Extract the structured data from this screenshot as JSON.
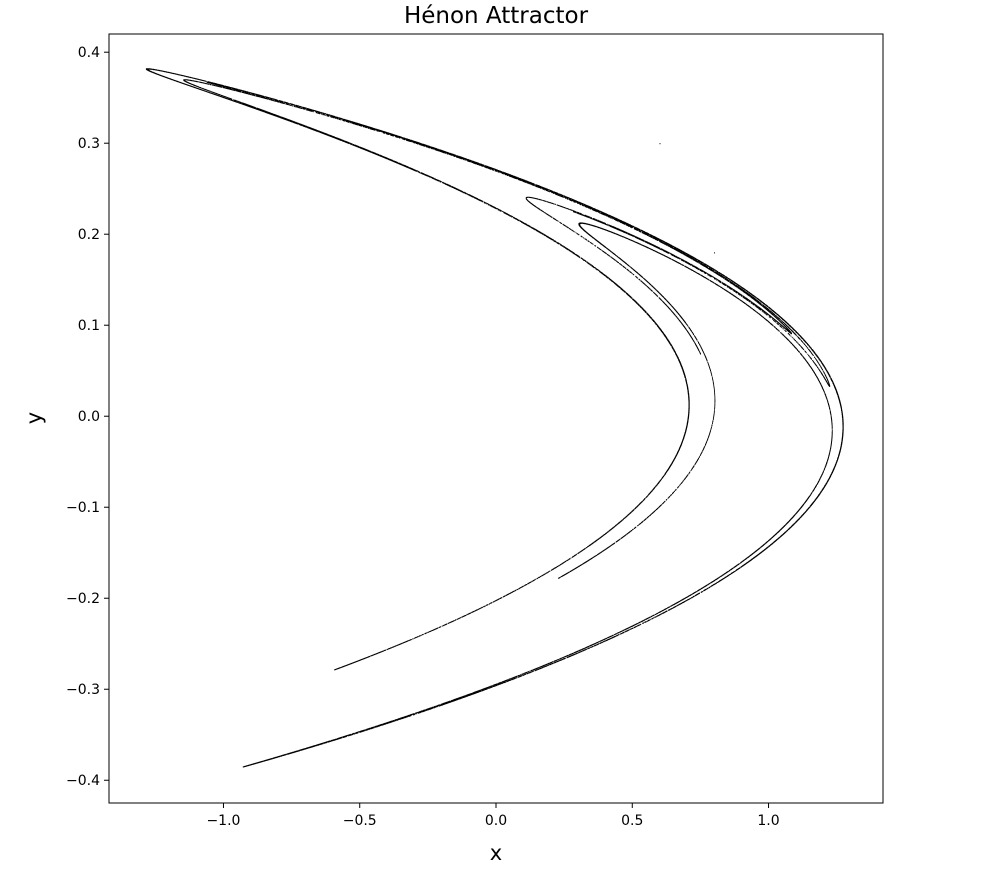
{
  "chart_data": {
    "type": "scatter",
    "title": "Hénon Attractor",
    "xlabel": "x",
    "ylabel": "y",
    "xlim": [
      -1.42,
      1.42
    ],
    "ylim": [
      -0.425,
      0.42
    ],
    "grid": false,
    "legend": "none",
    "marker_color": "#000000",
    "map": {
      "a": 1.4,
      "b": 0.3,
      "x0": 0.0,
      "y0": 0.0,
      "transient": 100,
      "iterations": 40000
    },
    "stray_points": [
      {
        "x": 0.6,
        "y": 0.3
      },
      {
        "x": 0.8,
        "y": 0.18
      }
    ],
    "x_ticks": [
      -1.0,
      -0.5,
      0.0,
      0.5,
      1.0
    ],
    "x_tick_labels": [
      "−1.0",
      "−0.5",
      "0.0",
      "0.5",
      "1.0"
    ],
    "y_ticks": [
      -0.4,
      -0.3,
      -0.2,
      -0.1,
      0.0,
      0.1,
      0.2,
      0.3,
      0.4
    ],
    "y_tick_labels": [
      "−0.4",
      "−0.3",
      "−0.2",
      "−0.1",
      "0.0",
      "0.1",
      "0.2",
      "0.3",
      "0.4"
    ]
  }
}
